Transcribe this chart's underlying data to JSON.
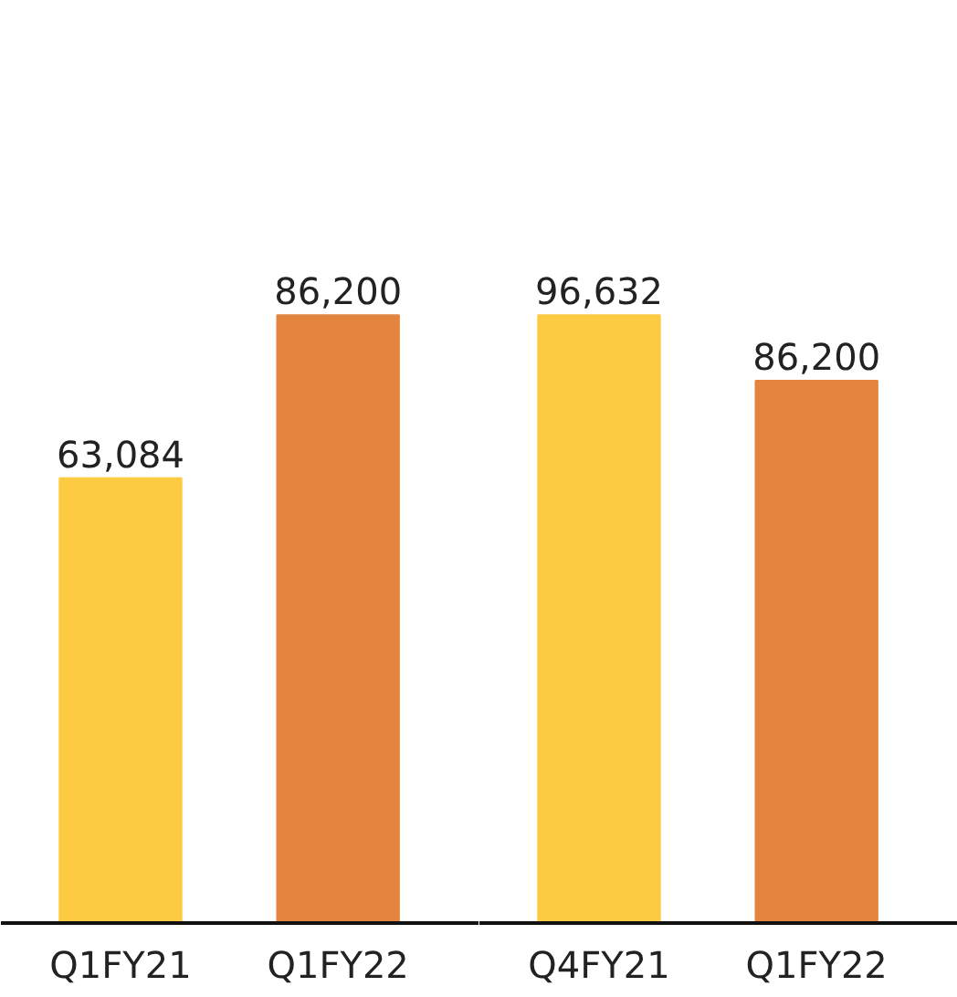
{
  "chart_data": [
    {
      "type": "bar",
      "categories": [
        "Q1FY21",
        "Q1FY22"
      ],
      "colors": [
        "#fccb41",
        "#e3843f"
      ],
      "values": [
        63084,
        86200
      ],
      "value_labels": [
        "63,084",
        "86,200"
      ],
      "grid": false
    },
    {
      "type": "bar",
      "categories": [
        "Q4FY21",
        "Q1FY22"
      ],
      "colors": [
        "#fccb41",
        "#e3843f"
      ],
      "values": [
        96632,
        86200
      ],
      "value_labels": [
        "96,632",
        "86,200"
      ],
      "grid": false
    }
  ]
}
